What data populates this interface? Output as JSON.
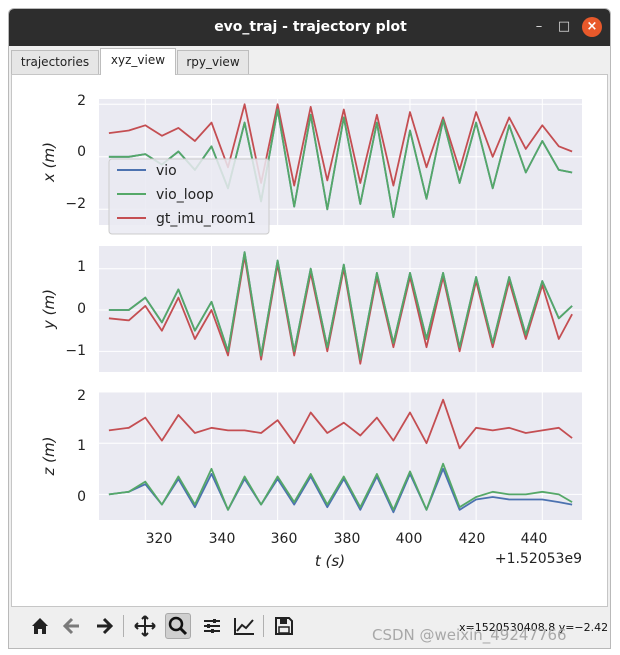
{
  "window": {
    "title": "evo_traj - trajectory plot",
    "controls": [
      "minimize",
      "maximize",
      "close"
    ]
  },
  "tabs": [
    {
      "label": "trajectories",
      "active": false
    },
    {
      "label": "xyz_view",
      "active": true
    },
    {
      "label": "rpy_view",
      "active": false
    }
  ],
  "figure": {
    "xlabel": "t (s)",
    "x_offset_label": "+1.52053e9",
    "x_ticks": [
      "320",
      "340",
      "360",
      "380",
      "400",
      "420",
      "440"
    ],
    "legend": [
      "vio",
      "vio_loop",
      "gt_imu_room1"
    ],
    "colors": {
      "vio": "#4c72b0",
      "vio_loop": "#55a868",
      "gt_imu_room1": "#c44e52",
      "axes_bg": "#eaeaf2",
      "grid": "#ffffff"
    },
    "panels": [
      {
        "ylabel": "x (m)",
        "y_ticks": [
          "2",
          "0",
          "−2"
        ]
      },
      {
        "ylabel": "y (m)",
        "y_ticks": [
          "1",
          "0",
          "−1"
        ]
      },
      {
        "ylabel": "z (m)",
        "y_ticks": [
          "2",
          "1",
          "0"
        ]
      }
    ]
  },
  "chart_data": [
    {
      "type": "line",
      "ylabel": "x (m)",
      "xlabel": "",
      "xlim": [
        306,
        452
      ],
      "ylim": [
        -2.6,
        2.2
      ],
      "series": [
        {
          "name": "vio",
          "x": [
            309,
            315,
            320,
            325,
            330,
            335,
            340,
            345,
            350,
            355,
            360,
            365,
            370,
            375,
            380,
            385,
            390,
            395,
            400,
            405,
            410,
            415,
            420,
            425,
            430,
            435,
            440,
            445,
            449
          ],
          "y": [
            0,
            0,
            0.1,
            -0.3,
            0.2,
            -0.5,
            0.4,
            -1.2,
            1.3,
            -1.7,
            1.8,
            -1.9,
            1.6,
            -2.0,
            1.5,
            -1.8,
            1.3,
            -2.3,
            1.0,
            -1.6,
            1.4,
            -1.0,
            1.3,
            -1.2,
            1.2,
            -0.6,
            0.6,
            -0.5,
            -0.6
          ]
        },
        {
          "name": "vio_loop",
          "x": [
            309,
            315,
            320,
            325,
            330,
            335,
            340,
            345,
            350,
            355,
            360,
            365,
            370,
            375,
            380,
            385,
            390,
            395,
            400,
            405,
            410,
            415,
            420,
            425,
            430,
            435,
            440,
            445,
            449
          ],
          "y": [
            0,
            0,
            0.1,
            -0.3,
            0.2,
            -0.5,
            0.4,
            -1.2,
            1.3,
            -1.7,
            1.8,
            -1.9,
            1.6,
            -2.0,
            1.5,
            -1.8,
            1.3,
            -2.3,
            1.0,
            -1.6,
            1.4,
            -1.0,
            1.3,
            -1.2,
            1.2,
            -0.6,
            0.6,
            -0.5,
            -0.6
          ]
        },
        {
          "name": "gt_imu_room1",
          "x": [
            309,
            315,
            320,
            325,
            330,
            335,
            340,
            345,
            350,
            355,
            360,
            365,
            370,
            375,
            380,
            385,
            390,
            395,
            400,
            405,
            410,
            415,
            420,
            425,
            430,
            435,
            440,
            445,
            449
          ],
          "y": [
            0.9,
            1.0,
            1.2,
            0.8,
            1.1,
            0.6,
            1.3,
            -0.4,
            2.0,
            -1.0,
            2.0,
            -1.1,
            1.9,
            -0.9,
            1.8,
            -1.0,
            1.6,
            -1.1,
            1.7,
            -0.4,
            1.5,
            -0.5,
            1.7,
            0.0,
            1.5,
            0.3,
            1.2,
            0.4,
            0.2
          ]
        }
      ]
    },
    {
      "type": "line",
      "ylabel": "y (m)",
      "xlabel": "",
      "xlim": [
        306,
        452
      ],
      "ylim": [
        -1.5,
        1.55
      ],
      "series": [
        {
          "name": "vio",
          "x": [
            309,
            315,
            320,
            325,
            330,
            335,
            340,
            345,
            350,
            355,
            360,
            365,
            370,
            375,
            380,
            385,
            390,
            395,
            400,
            405,
            410,
            415,
            420,
            425,
            430,
            435,
            440,
            445,
            449
          ],
          "y": [
            0,
            0,
            0.3,
            -0.3,
            0.5,
            -0.5,
            0.2,
            -1.0,
            1.4,
            -1.1,
            1.2,
            -1.0,
            1.0,
            -0.9,
            1.1,
            -1.2,
            0.9,
            -0.8,
            0.9,
            -0.7,
            0.9,
            -0.9,
            0.8,
            -0.8,
            0.8,
            -0.6,
            0.7,
            -0.2,
            0.1
          ]
        },
        {
          "name": "vio_loop",
          "x": [
            309,
            315,
            320,
            325,
            330,
            335,
            340,
            345,
            350,
            355,
            360,
            365,
            370,
            375,
            380,
            385,
            390,
            395,
            400,
            405,
            410,
            415,
            420,
            425,
            430,
            435,
            440,
            445,
            449
          ],
          "y": [
            0,
            0,
            0.3,
            -0.3,
            0.5,
            -0.5,
            0.2,
            -1.0,
            1.4,
            -1.1,
            1.2,
            -1.0,
            1.0,
            -0.9,
            1.1,
            -1.2,
            0.9,
            -0.8,
            0.9,
            -0.7,
            0.9,
            -0.9,
            0.8,
            -0.8,
            0.8,
            -0.6,
            0.7,
            -0.2,
            0.1
          ]
        },
        {
          "name": "gt_imu_room1",
          "x": [
            309,
            315,
            320,
            325,
            330,
            335,
            340,
            345,
            350,
            355,
            360,
            365,
            370,
            375,
            380,
            385,
            390,
            395,
            400,
            405,
            410,
            415,
            420,
            425,
            430,
            435,
            440,
            445,
            449
          ],
          "y": [
            -0.2,
            -0.25,
            0.1,
            -0.5,
            0.3,
            -0.7,
            0.0,
            -1.1,
            1.3,
            -1.2,
            1.1,
            -1.1,
            0.9,
            -1.0,
            1.0,
            -1.3,
            0.8,
            -0.9,
            0.8,
            -0.9,
            0.8,
            -1.0,
            0.7,
            -0.9,
            0.7,
            -0.7,
            0.6,
            -0.7,
            -0.1
          ]
        }
      ]
    },
    {
      "type": "line",
      "ylabel": "z (m)",
      "xlabel": "t (s)",
      "xlim": [
        306,
        452
      ],
      "ylim": [
        -0.5,
        2.0
      ],
      "series": [
        {
          "name": "vio",
          "x": [
            309,
            315,
            320,
            325,
            330,
            335,
            340,
            345,
            350,
            355,
            360,
            365,
            370,
            375,
            380,
            385,
            390,
            395,
            400,
            405,
            410,
            415,
            420,
            425,
            430,
            435,
            440,
            445,
            449
          ],
          "y": [
            0.0,
            0.05,
            0.2,
            -0.2,
            0.3,
            -0.25,
            0.4,
            -0.3,
            0.3,
            -0.2,
            0.3,
            -0.2,
            0.35,
            -0.25,
            0.3,
            -0.3,
            0.35,
            -0.35,
            0.4,
            -0.3,
            0.5,
            -0.3,
            -0.1,
            -0.05,
            -0.1,
            -0.1,
            -0.1,
            -0.15,
            -0.2
          ]
        },
        {
          "name": "vio_loop",
          "x": [
            309,
            315,
            320,
            325,
            330,
            335,
            340,
            345,
            350,
            355,
            360,
            365,
            370,
            375,
            380,
            385,
            390,
            395,
            400,
            405,
            410,
            415,
            420,
            425,
            430,
            435,
            440,
            445,
            449
          ],
          "y": [
            0.0,
            0.05,
            0.25,
            -0.2,
            0.35,
            -0.2,
            0.5,
            -0.3,
            0.35,
            -0.2,
            0.35,
            -0.15,
            0.4,
            -0.2,
            0.35,
            -0.25,
            0.4,
            -0.3,
            0.45,
            -0.3,
            0.6,
            -0.25,
            -0.05,
            0.05,
            0.0,
            0.0,
            0.05,
            0.0,
            -0.15
          ]
        },
        {
          "name": "gt_imu_room1",
          "x": [
            309,
            315,
            320,
            325,
            330,
            335,
            340,
            345,
            350,
            355,
            360,
            365,
            370,
            375,
            380,
            385,
            390,
            395,
            400,
            405,
            410,
            415,
            420,
            425,
            430,
            435,
            440,
            445,
            449
          ],
          "y": [
            1.25,
            1.3,
            1.5,
            1.05,
            1.55,
            1.2,
            1.3,
            1.25,
            1.25,
            1.2,
            1.45,
            1.0,
            1.6,
            1.2,
            1.4,
            1.15,
            1.5,
            1.05,
            1.6,
            1.0,
            1.85,
            0.9,
            1.3,
            1.25,
            1.3,
            1.2,
            1.25,
            1.3,
            1.1
          ]
        }
      ]
    }
  ],
  "toolbar": {
    "buttons": [
      "home-icon",
      "back-icon",
      "forward-icon",
      "pan-icon",
      "zoom-icon",
      "subplots-icon",
      "customize-icon",
      "save-icon"
    ],
    "active": "zoom-icon",
    "coords": "x=1520530408.8 y=−2.42"
  },
  "watermark": "CSDN @weixin_49247766"
}
